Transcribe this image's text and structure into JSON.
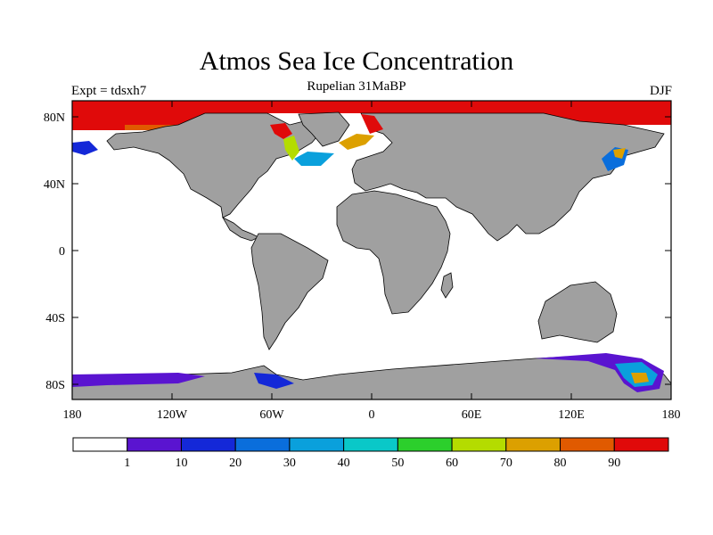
{
  "title": "Atmos Sea Ice Concentration",
  "subtitle": "Rupelian  31MaBP",
  "left_label": "Expt = tdsxh7",
  "right_label": "DJF",
  "colors": {
    "land": "#a0a0a0",
    "ocean": "#ffffff",
    "scale": [
      "#ffffff",
      "#5a14d0",
      "#1428d8",
      "#0a6edc",
      "#0aa0dc",
      "#0ac8c8",
      "#2ccf2c",
      "#b4dc00",
      "#dca000",
      "#e05a00",
      "#e00a0a"
    ]
  },
  "map": {
    "lat_ticks": [
      "80N",
      "40N",
      "0",
      "40S",
      "80S"
    ],
    "lon_ticks": [
      "180",
      "120W",
      "60W",
      "0",
      "60E",
      "120E",
      "180"
    ]
  },
  "colorbar": {
    "labels": [
      "1",
      "10",
      "20",
      "30",
      "40",
      "50",
      "60",
      "70",
      "80",
      "90"
    ]
  }
}
